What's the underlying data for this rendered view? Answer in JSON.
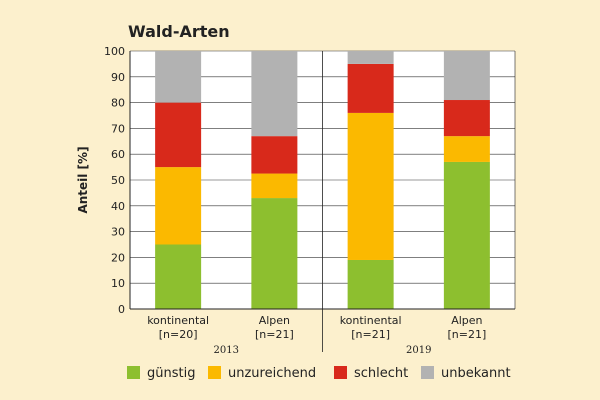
{
  "chart_data": {
    "type": "bar",
    "stacked": true,
    "title": "Wald-Arten",
    "ylabel": "Anteil [%]",
    "ylim": [
      0,
      100
    ],
    "yticks": [
      "0",
      "10",
      "20",
      "30",
      "40",
      "50",
      "60",
      "70",
      "80",
      "90",
      "100"
    ],
    "categories": [
      {
        "name": "kontinental",
        "n": "[n=20]"
      },
      {
        "name": "Alpen",
        "n": "[n=21]"
      },
      {
        "name": "kontinental",
        "n": "[n=21]"
      },
      {
        "name": "Alpen",
        "n": "[n=21]"
      }
    ],
    "groups": [
      {
        "label": "2013",
        "categories": [
          0,
          1
        ]
      },
      {
        "label": "2019",
        "categories": [
          2,
          3
        ]
      }
    ],
    "series": [
      {
        "name": "günstig",
        "color": "#8dbf2f",
        "values": [
          25,
          43,
          19,
          57
        ]
      },
      {
        "name": "unzureichend",
        "color": "#fbb900",
        "values": [
          30,
          9.5,
          57,
          10
        ]
      },
      {
        "name": "schlecht",
        "color": "#d8291b",
        "values": [
          25,
          14.5,
          19,
          14
        ]
      },
      {
        "name": "unbekannt",
        "color": "#b2b2b2",
        "values": [
          20,
          33,
          5,
          19
        ]
      }
    ],
    "grid": true,
    "legend_position": "bottom"
  }
}
